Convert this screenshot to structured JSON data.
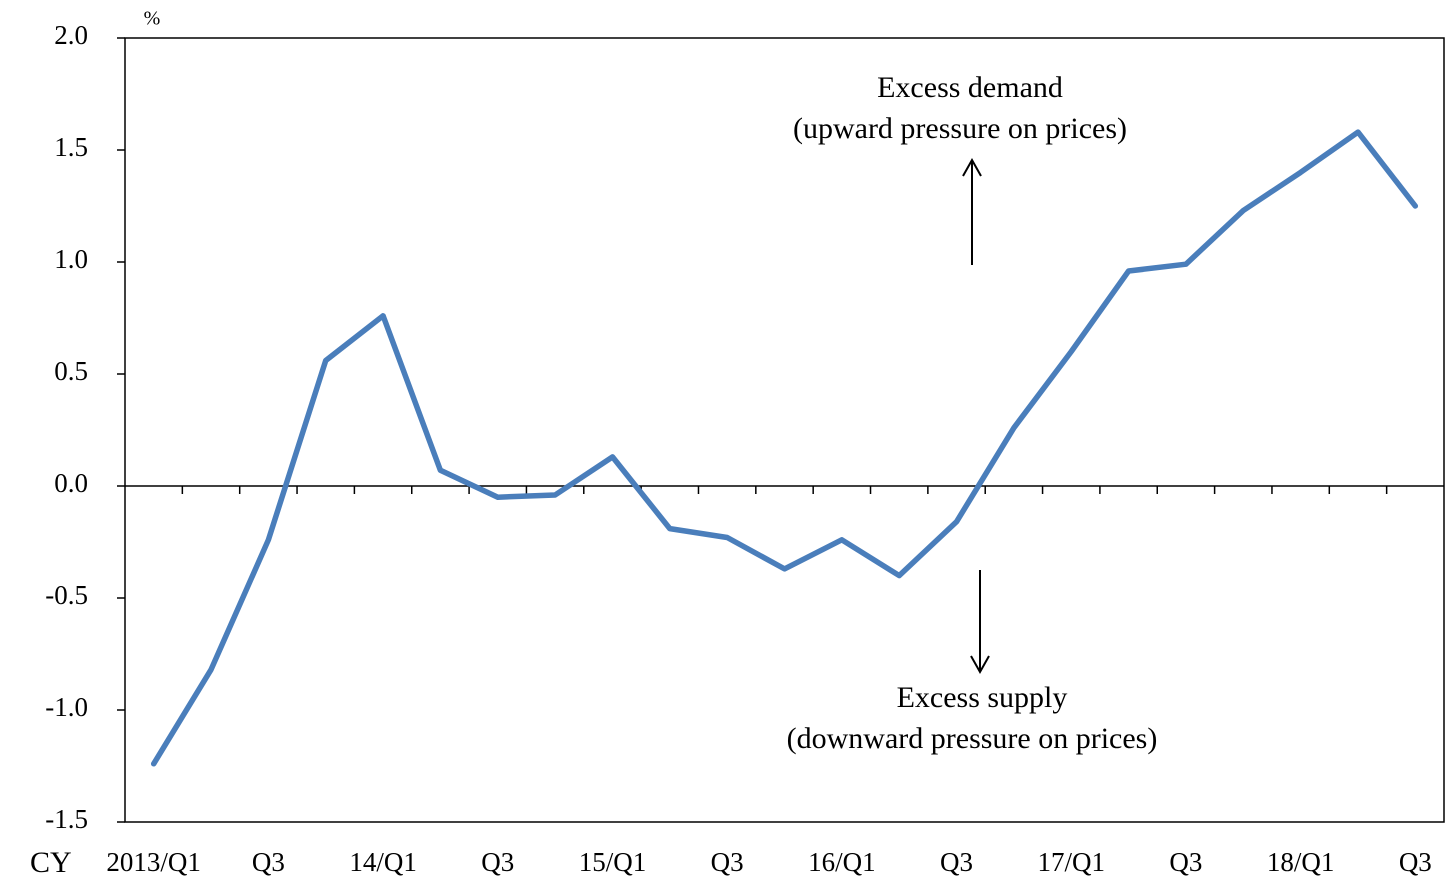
{
  "chart_data": {
    "type": "line",
    "unit_label": "%",
    "x_prefix": "CY",
    "annotations": [
      "Excess demand",
      "(upward pressure on prices)",
      "Excess supply",
      "(downward pressure on prices)"
    ],
    "categories": [
      "2013/Q1",
      null,
      "Q3",
      null,
      "14/Q1",
      null,
      "Q3",
      null,
      "15/Q1",
      null,
      "Q3",
      null,
      "16/Q1",
      null,
      "Q3",
      null,
      "17/Q1",
      null,
      "Q3",
      null,
      "18/Q1",
      null,
      "Q3"
    ],
    "series": [
      {
        "color": "#4a7ebb",
        "values": [
          -1.24,
          -0.82,
          -0.24,
          0.56,
          0.76,
          0.07,
          -0.05,
          -0.04,
          0.13,
          -0.19,
          -0.23,
          -0.37,
          -0.24,
          -0.4,
          -0.16,
          0.26,
          0.6,
          0.96,
          0.99,
          1.23,
          1.4,
          1.58,
          1.25
        ]
      }
    ],
    "ylim": [
      -1.5,
      2.0
    ],
    "yticks": [
      {
        "value": -1.5,
        "label": "-1.5"
      },
      {
        "value": -1.0,
        "label": "-1.0"
      },
      {
        "value": -0.5,
        "label": "-0.5"
      },
      {
        "value": 0,
        "label": "0.0"
      },
      {
        "value": 0.5,
        "label": "0.5"
      },
      {
        "value": 1.0,
        "label": "1.0"
      },
      {
        "value": 1.5,
        "label": "1.5"
      },
      {
        "value": 2.0,
        "label": "2.0"
      }
    ]
  }
}
